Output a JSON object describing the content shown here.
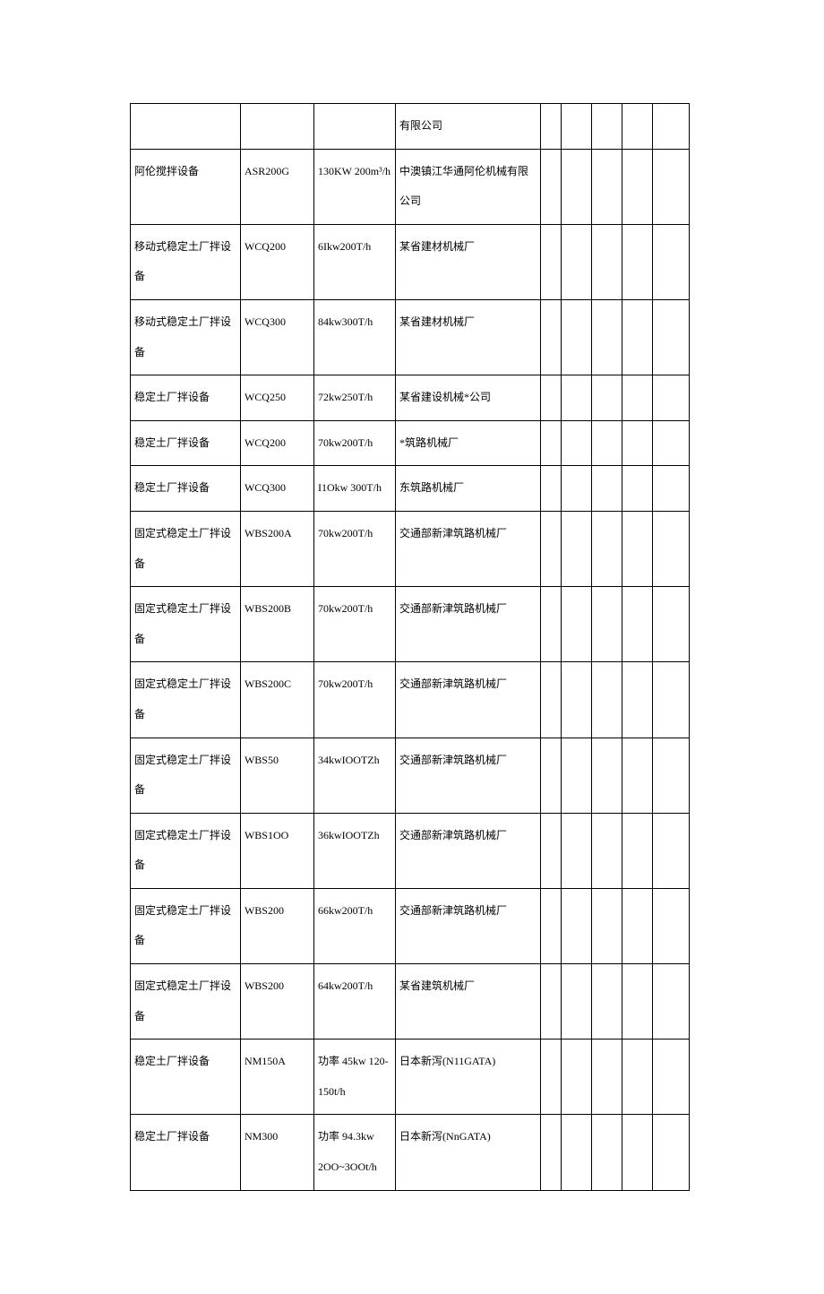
{
  "table": {
    "columns": {
      "name_width": 108,
      "model_width": 72,
      "spec_width": 80,
      "mfr_width": 142,
      "empty_widths": [
        20,
        30,
        30,
        30,
        36
      ]
    },
    "styling": {
      "border_color": "#000000",
      "background_color": "#ffffff",
      "text_color": "#000000",
      "font_size": 12,
      "line_height": 2.8,
      "font_family": "SimSun"
    },
    "rows": [
      {
        "name": "",
        "model": "",
        "spec": "",
        "manufacturer": "有限公司"
      },
      {
        "name": "阿伦搅拌设备",
        "model": "ASR200G",
        "spec": "130KW 200m³/h",
        "manufacturer": "中澳镇江华通阿伦机械有限公司"
      },
      {
        "name": "移动式稳定土厂拌设备",
        "model": "WCQ200",
        "spec": "6Ikw200T/h",
        "manufacturer": "某省建材机械厂"
      },
      {
        "name": "移动式稳定土厂拌设备",
        "model": "WCQ300",
        "spec": "84kw300T/h",
        "manufacturer": "某省建材机械厂"
      },
      {
        "name": "稳定土厂拌设备",
        "model": "WCQ250",
        "spec": "72kw250T/h",
        "manufacturer": "某省建设机械*公司"
      },
      {
        "name": "稳定土厂拌设备",
        "model": "WCQ200",
        "spec": "70kw200T/h",
        "manufacturer": "*筑路机械厂"
      },
      {
        "name": "稳定土厂拌设备",
        "model": "WCQ300",
        "spec": "I1Okw 300T/h",
        "manufacturer": "东筑路机械厂"
      },
      {
        "name": "固定式稳定土厂拌设备",
        "model": "WBS200A",
        "spec": "70kw200T/h",
        "manufacturer": "交通部新津筑路机械厂"
      },
      {
        "name": "固定式稳定土厂拌设备",
        "model": "WBS200B",
        "spec": "70kw200T/h",
        "manufacturer": "交通部新津筑路机械厂"
      },
      {
        "name": "固定式稳定土厂拌设备",
        "model": "WBS200C",
        "spec": "70kw200T/h",
        "manufacturer": "交通部新津筑路机械厂"
      },
      {
        "name": "固定式稳定土厂拌设备",
        "model": "WBS50",
        "spec": "34kwIOOTZh",
        "manufacturer": "交通部新津筑路机械厂"
      },
      {
        "name": "固定式稳定土厂拌设备",
        "model": "WBS1OO",
        "spec": "36kwIOOTZh",
        "manufacturer": "交通部新津筑路机械厂"
      },
      {
        "name": "固定式稳定土厂拌设备",
        "model": "WBS200",
        "spec": "66kw200T/h",
        "manufacturer": "交通部新津筑路机械厂"
      },
      {
        "name": "固定式稳定土厂拌设备",
        "model": "WBS200",
        "spec": "64kw200T/h",
        "manufacturer": "某省建筑机械厂"
      },
      {
        "name": "稳定土厂拌设备",
        "model": "NM150A",
        "spec": "功率 45kw 120-150t/h",
        "manufacturer": "日本新泻(N11GATA)"
      },
      {
        "name": "稳定土厂拌设备",
        "model": "NM300",
        "spec": "功率 94.3kw 2OO~3OOt/h",
        "manufacturer": "日本新泻(NnGATA)"
      }
    ]
  }
}
